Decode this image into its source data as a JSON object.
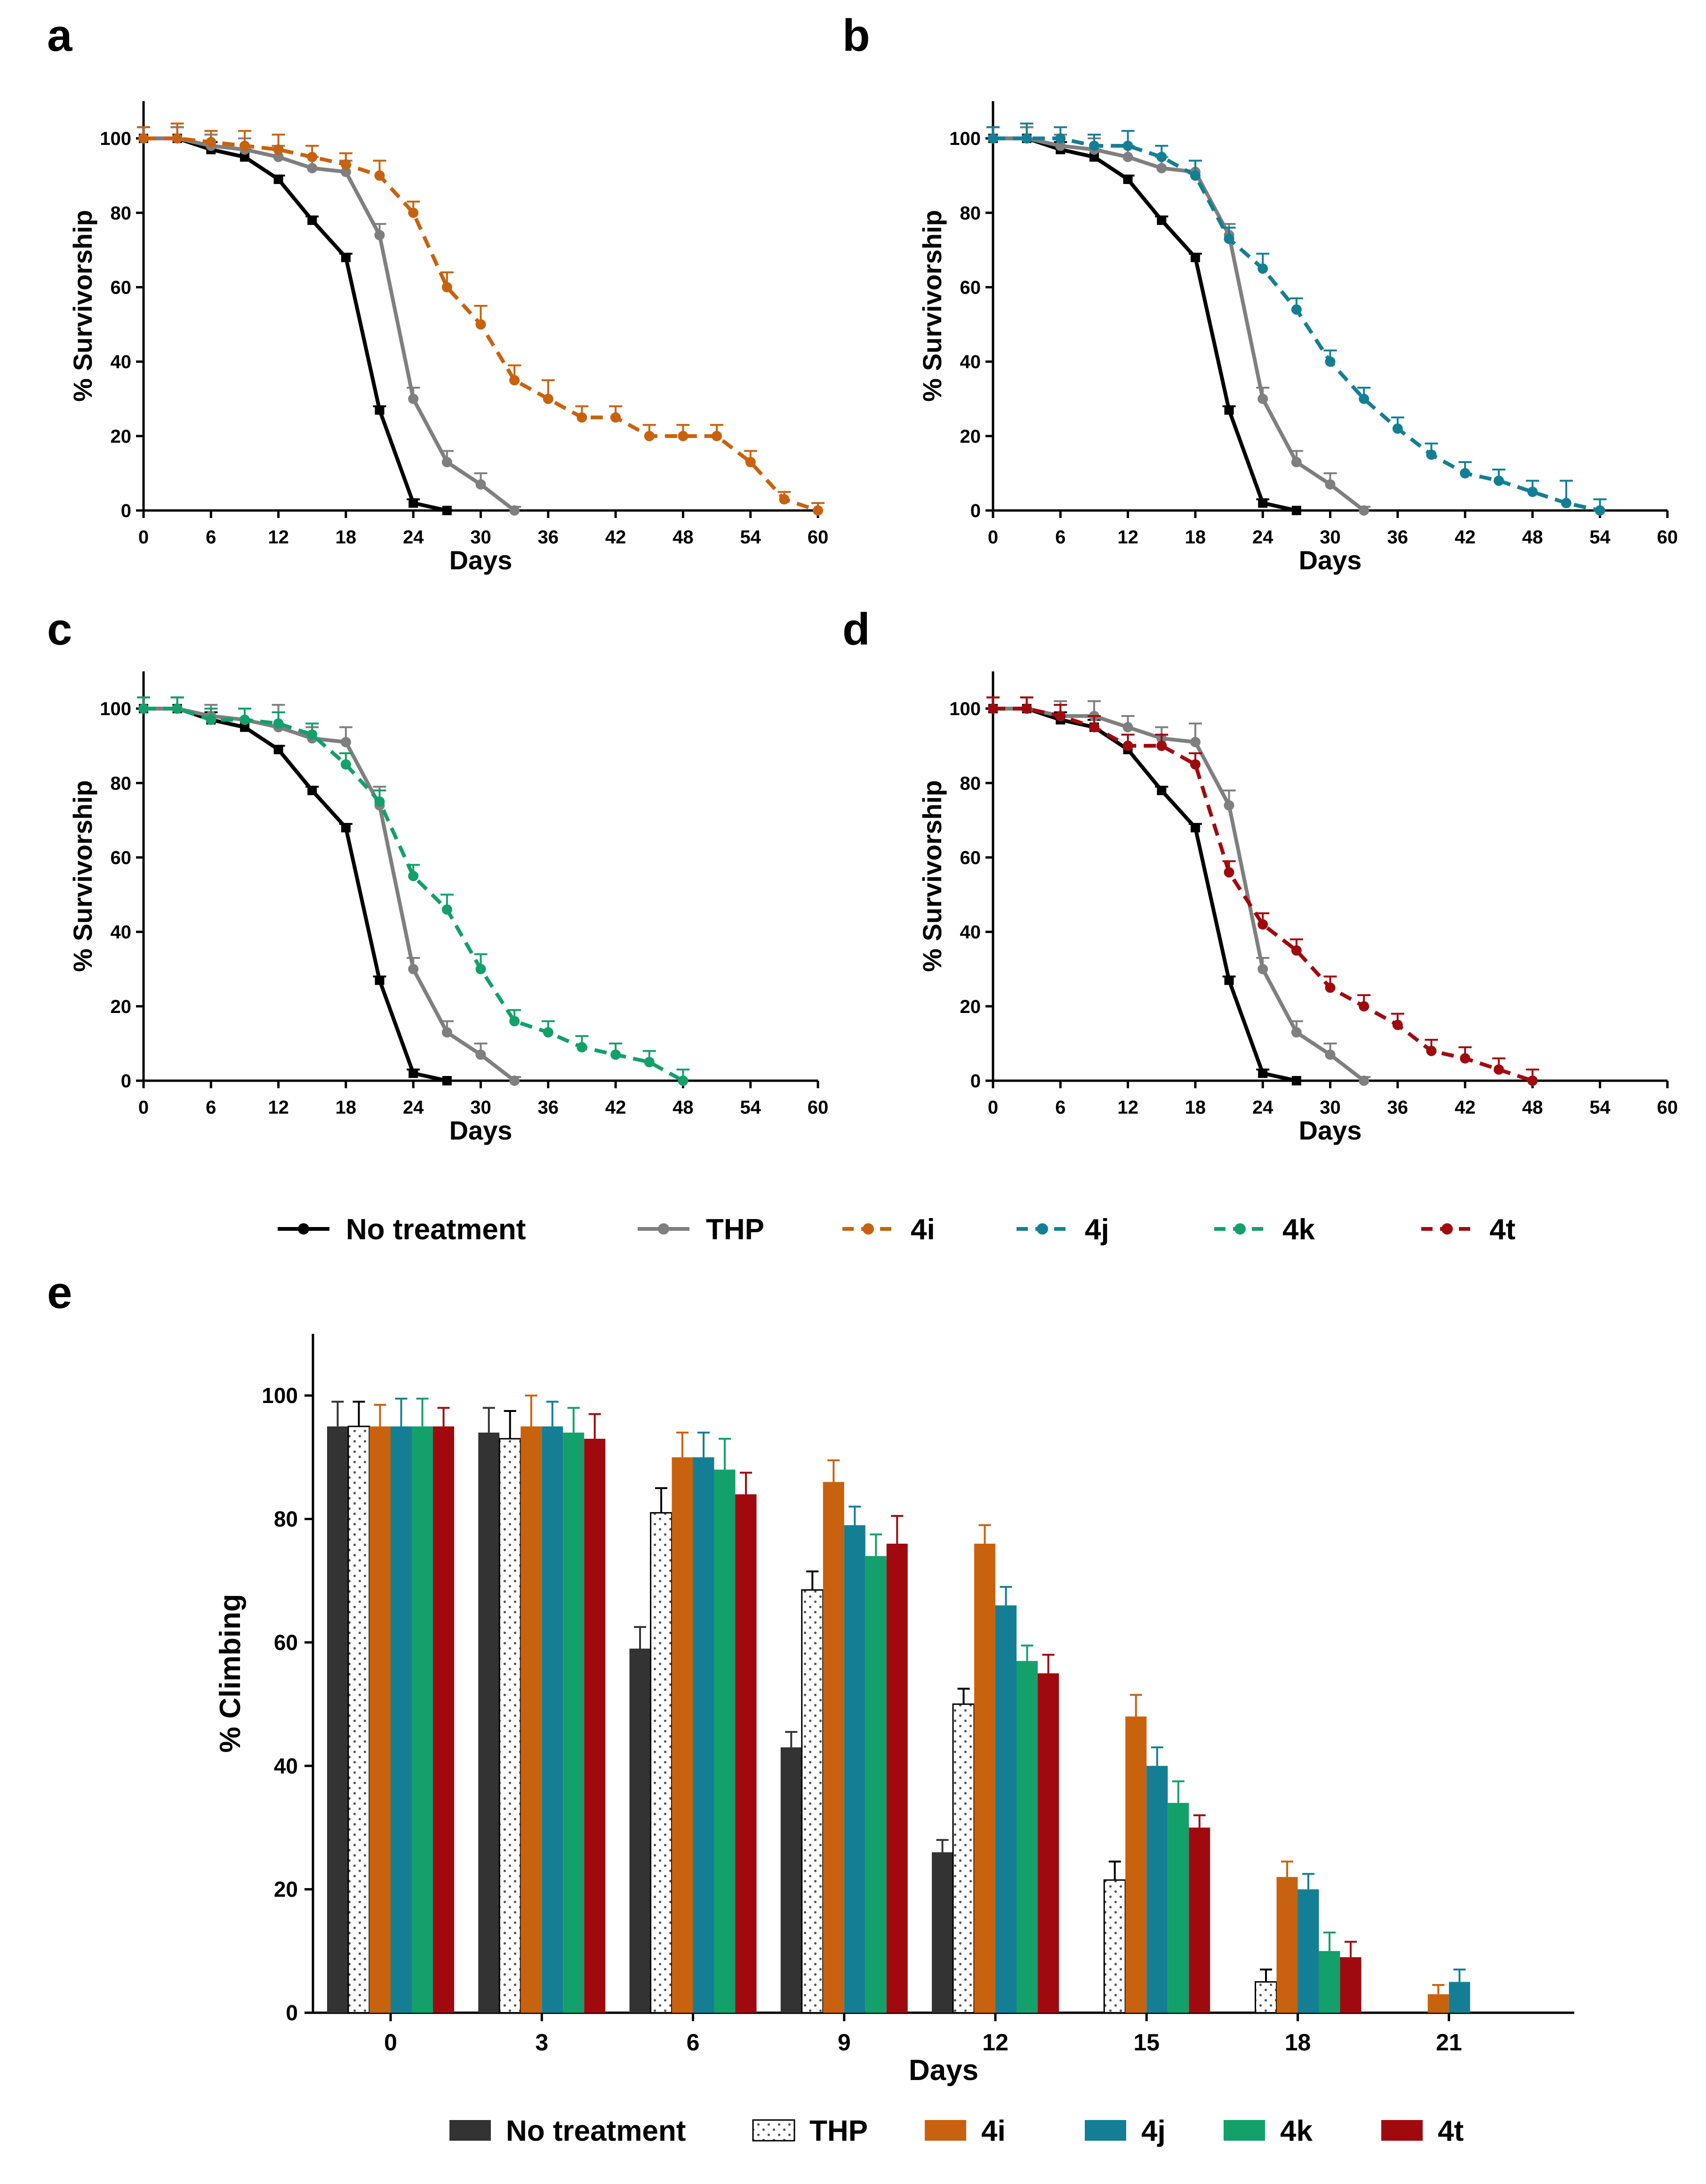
{
  "figure": {
    "colors": {
      "no_treatment": "#000000",
      "thp": "#7f7f7f",
      "4i": "#c8620e",
      "4j": "#147f94",
      "4k": "#13a06b",
      "4t": "#a00a0e",
      "axis": "#000000",
      "bar_no_treatment": "#333333"
    },
    "line_legend": [
      {
        "key": "no_treatment",
        "label": "No treatment",
        "style": "solid"
      },
      {
        "key": "thp",
        "label": "THP",
        "style": "solid"
      },
      {
        "key": "4i",
        "label": "4i",
        "style": "dashed"
      },
      {
        "key": "4j",
        "label": "4j",
        "style": "dashed"
      },
      {
        "key": "4k",
        "label": "4k",
        "style": "dashed"
      },
      {
        "key": "4t",
        "label": "4t",
        "style": "dashed"
      }
    ],
    "bar_legend": [
      {
        "key": "no_treatment",
        "label": "No treatment",
        "fill": "solid"
      },
      {
        "key": "thp",
        "label": "THP",
        "fill": "dotted"
      },
      {
        "key": "4i",
        "label": "4i",
        "fill": "solid"
      },
      {
        "key": "4j",
        "label": "4j",
        "fill": "solid"
      },
      {
        "key": "4k",
        "label": "4k",
        "fill": "solid"
      },
      {
        "key": "4t",
        "label": "4t",
        "fill": "solid"
      }
    ]
  },
  "chart_data": [
    {
      "panel": "a",
      "type": "line",
      "xlabel": "Days",
      "ylabel": "% Survivorship",
      "xlim": [
        0,
        60
      ],
      "ylim": [
        0,
        110
      ],
      "xticks": [
        0,
        6,
        12,
        18,
        24,
        30,
        36,
        42,
        48,
        54,
        60
      ],
      "yticks": [
        0,
        20,
        40,
        60,
        80,
        100
      ],
      "grid": false,
      "error_bars": "up",
      "series": [
        {
          "key": "no_treatment",
          "style": "solid",
          "x": [
            0,
            3,
            6,
            9,
            12,
            15,
            18,
            21,
            24,
            27
          ],
          "y": [
            100,
            100,
            97,
            95,
            89,
            78,
            68,
            27,
            2,
            0
          ],
          "err": [
            3,
            3,
            2,
            2,
            1,
            1,
            1,
            1,
            1,
            0
          ]
        },
        {
          "key": "thp",
          "style": "solid",
          "x": [
            0,
            3,
            6,
            9,
            12,
            15,
            18,
            21,
            24,
            27,
            30,
            33
          ],
          "y": [
            100,
            100,
            98,
            97,
            95,
            92,
            91,
            74,
            30,
            13,
            7,
            0
          ],
          "err": [
            3,
            3,
            3,
            3,
            3,
            3,
            3,
            3,
            3,
            3,
            3,
            1
          ]
        },
        {
          "key": "4i",
          "style": "dashed",
          "x": [
            0,
            3,
            6,
            9,
            12,
            15,
            18,
            21,
            24,
            27,
            30,
            33,
            36,
            39,
            42,
            45,
            48,
            51,
            54,
            57,
            60
          ],
          "y": [
            100,
            100,
            99,
            98,
            97,
            95,
            93,
            90,
            80,
            60,
            50,
            35,
            30,
            25,
            25,
            20,
            20,
            20,
            13,
            3,
            0
          ],
          "err": [
            3,
            4,
            3,
            4,
            4,
            3,
            3,
            4,
            3,
            4,
            5,
            4,
            5,
            3,
            3,
            3,
            3,
            3,
            3,
            2,
            2
          ]
        }
      ]
    },
    {
      "panel": "b",
      "type": "line",
      "xlabel": "Days",
      "ylabel": "% Survivorship",
      "xlim": [
        0,
        60
      ],
      "ylim": [
        0,
        110
      ],
      "xticks": [
        0,
        6,
        12,
        18,
        24,
        30,
        36,
        42,
        48,
        54,
        60
      ],
      "yticks": [
        0,
        20,
        40,
        60,
        80,
        100
      ],
      "grid": false,
      "error_bars": "up",
      "series": [
        {
          "key": "no_treatment",
          "style": "solid",
          "x": [
            0,
            3,
            6,
            9,
            12,
            15,
            18,
            21,
            24,
            27
          ],
          "y": [
            100,
            100,
            97,
            95,
            89,
            78,
            68,
            27,
            2,
            0
          ],
          "err": [
            3,
            3,
            2,
            2,
            1,
            1,
            1,
            1,
            1,
            0
          ]
        },
        {
          "key": "thp",
          "style": "solid",
          "x": [
            0,
            3,
            6,
            9,
            12,
            15,
            18,
            21,
            24,
            27,
            30,
            33
          ],
          "y": [
            100,
            100,
            98,
            97,
            95,
            92,
            91,
            74,
            30,
            13,
            7,
            0
          ],
          "err": [
            3,
            3,
            3,
            3,
            3,
            3,
            3,
            3,
            3,
            3,
            3,
            1
          ]
        },
        {
          "key": "4j",
          "style": "dashed",
          "x": [
            0,
            3,
            6,
            9,
            12,
            15,
            18,
            21,
            24,
            27,
            30,
            33,
            36,
            39,
            42,
            45,
            48,
            51,
            54
          ],
          "y": [
            100,
            100,
            100,
            98,
            98,
            95,
            90,
            73,
            65,
            54,
            40,
            30,
            22,
            15,
            10,
            8,
            5,
            2,
            0
          ],
          "err": [
            3,
            4,
            3,
            3,
            4,
            3,
            4,
            3,
            4,
            3,
            3,
            3,
            3,
            3,
            3,
            3,
            3,
            6,
            3
          ]
        }
      ]
    },
    {
      "panel": "c",
      "type": "line",
      "xlabel": "Days",
      "ylabel": "% Survivorship",
      "xlim": [
        0,
        60
      ],
      "ylim": [
        0,
        110
      ],
      "xticks": [
        0,
        6,
        12,
        18,
        24,
        30,
        36,
        42,
        48,
        54,
        60
      ],
      "yticks": [
        0,
        20,
        40,
        60,
        80,
        100
      ],
      "grid": false,
      "error_bars": "up",
      "series": [
        {
          "key": "no_treatment",
          "style": "solid",
          "x": [
            0,
            3,
            6,
            9,
            12,
            15,
            18,
            21,
            24,
            27
          ],
          "y": [
            100,
            100,
            97,
            95,
            89,
            78,
            68,
            27,
            2,
            0
          ],
          "err": [
            3,
            3,
            2,
            2,
            1,
            1,
            1,
            1,
            1,
            0
          ]
        },
        {
          "key": "thp",
          "style": "solid",
          "x": [
            0,
            3,
            6,
            9,
            12,
            15,
            18,
            21,
            24,
            27,
            30,
            33
          ],
          "y": [
            100,
            100,
            98,
            97,
            95,
            92,
            91,
            74,
            30,
            13,
            7,
            0
          ],
          "err": [
            3,
            3,
            3,
            3,
            6,
            3,
            4,
            5,
            3,
            3,
            3,
            1
          ]
        },
        {
          "key": "4k",
          "style": "dashed",
          "x": [
            0,
            3,
            6,
            9,
            12,
            15,
            18,
            21,
            24,
            27,
            30,
            33,
            36,
            39,
            42,
            45,
            48
          ],
          "y": [
            100,
            100,
            97,
            97,
            96,
            93,
            85,
            75,
            55,
            46,
            30,
            16,
            13,
            9,
            7,
            5,
            0
          ],
          "err": [
            3,
            3,
            3,
            3,
            3,
            3,
            3,
            3,
            3,
            4,
            4,
            3,
            3,
            3,
            3,
            3,
            3
          ]
        }
      ]
    },
    {
      "panel": "d",
      "type": "line",
      "xlabel": "Days",
      "ylabel": "% Survivorship",
      "xlim": [
        0,
        60
      ],
      "ylim": [
        0,
        110
      ],
      "xticks": [
        0,
        6,
        12,
        18,
        24,
        30,
        36,
        42,
        48,
        54,
        60
      ],
      "yticks": [
        0,
        20,
        40,
        60,
        80,
        100
      ],
      "grid": false,
      "error_bars": "up",
      "series": [
        {
          "key": "no_treatment",
          "style": "solid",
          "x": [
            0,
            3,
            6,
            9,
            12,
            15,
            18,
            21,
            24,
            27
          ],
          "y": [
            100,
            100,
            97,
            95,
            89,
            78,
            68,
            27,
            2,
            0
          ],
          "err": [
            3,
            3,
            2,
            2,
            1,
            1,
            1,
            1,
            1,
            0
          ]
        },
        {
          "key": "thp",
          "style": "solid",
          "x": [
            0,
            3,
            6,
            9,
            12,
            15,
            18,
            21,
            24,
            27,
            30,
            33
          ],
          "y": [
            100,
            100,
            98,
            98,
            95,
            92,
            91,
            74,
            30,
            13,
            7,
            0
          ],
          "err": [
            3,
            3,
            4,
            4,
            3,
            3,
            5,
            4,
            3,
            3,
            3,
            1
          ]
        },
        {
          "key": "4t",
          "style": "dashed",
          "x": [
            0,
            3,
            6,
            9,
            12,
            15,
            18,
            21,
            24,
            27,
            30,
            33,
            36,
            39,
            42,
            45,
            48
          ],
          "y": [
            100,
            100,
            98,
            95,
            90,
            90,
            85,
            56,
            42,
            35,
            25,
            20,
            15,
            8,
            6,
            3,
            0
          ],
          "err": [
            3,
            3,
            3,
            3,
            3,
            3,
            3,
            3,
            3,
            3,
            3,
            3,
            3,
            3,
            3,
            3,
            3
          ]
        }
      ]
    },
    {
      "panel": "e",
      "type": "bar",
      "xlabel": "Days",
      "ylabel": "% Climbing",
      "categories": [
        "0",
        "3",
        "6",
        "9",
        "12",
        "15",
        "18",
        "21"
      ],
      "ylim": [
        0,
        110
      ],
      "yticks": [
        0,
        20,
        40,
        60,
        80,
        100
      ],
      "grid": false,
      "error_bars": "up",
      "series": [
        {
          "key": "no_treatment",
          "values": [
            95,
            94,
            59,
            43,
            26,
            null,
            null,
            null
          ],
          "err": [
            4,
            4,
            3.5,
            2.5,
            2,
            null,
            null,
            null
          ]
        },
        {
          "key": "thp",
          "values": [
            95,
            93,
            81,
            68.5,
            50,
            21.5,
            5,
            null
          ],
          "err": [
            4,
            4.5,
            4,
            3,
            2.5,
            3,
            2,
            null
          ]
        },
        {
          "key": "4i",
          "values": [
            95,
            95,
            90,
            86,
            76,
            48,
            22,
            3
          ],
          "err": [
            3.5,
            5,
            4,
            3.5,
            3,
            3.5,
            2.5,
            1.5
          ]
        },
        {
          "key": "4j",
          "values": [
            95,
            95,
            90,
            79,
            66,
            40,
            20,
            5
          ],
          "err": [
            4.5,
            4,
            4,
            3,
            3,
            3,
            2.5,
            2
          ]
        },
        {
          "key": "4k",
          "values": [
            95,
            94,
            88,
            74,
            57,
            34,
            10,
            null
          ],
          "err": [
            4.5,
            4,
            5,
            3.5,
            2.5,
            3.5,
            3,
            null
          ]
        },
        {
          "key": "4t",
          "values": [
            95,
            93,
            84,
            76,
            55,
            30,
            9,
            null
          ],
          "err": [
            3,
            4,
            3.5,
            4.5,
            3,
            2,
            2.5,
            null
          ]
        }
      ]
    }
  ],
  "panel_labels": [
    "a",
    "b",
    "c",
    "d",
    "e"
  ]
}
